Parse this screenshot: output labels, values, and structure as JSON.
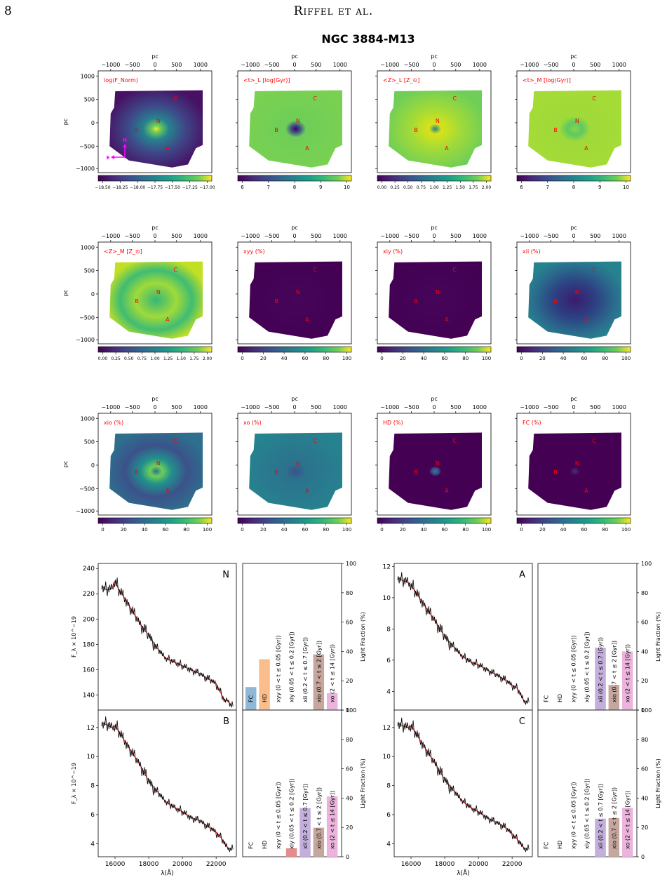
{
  "header": {
    "page_number": "8",
    "running_head": "Riffel et al."
  },
  "figure_title": "NGC 3884-M13",
  "map_axis": {
    "top_label": "pc",
    "left_label": "pc",
    "ticks": [
      "−1000",
      "−500",
      "0",
      "500",
      "1000"
    ]
  },
  "map_points": [
    "N",
    "A",
    "B",
    "C"
  ],
  "compass": {
    "north": "N",
    "east": "E"
  },
  "maps": [
    {
      "label": "log(F_Norm)",
      "cbar_ticks": [
        "−18.50",
        "−18.25",
        "−18.00",
        "−17.75",
        "−17.50",
        "−17.25",
        "−17.00"
      ]
    },
    {
      "label": "<t>_L [log(Gyr)]",
      "cbar_ticks": [
        "6",
        "7",
        "8",
        "9",
        "10"
      ]
    },
    {
      "label": "<Z>_L [Z_⊙]",
      "cbar_ticks": [
        "0.00",
        "0.25",
        "0.50",
        "0.75",
        "1.00",
        "1.25",
        "1.50",
        "1.75",
        "2.00"
      ]
    },
    {
      "label": "<t>_M [log(Gyr)]",
      "cbar_ticks": [
        "6",
        "7",
        "8",
        "9",
        "10"
      ]
    },
    {
      "label": "<Z>_M [Z_⊙]",
      "cbar_ticks": [
        "0.00",
        "0.25",
        "0.50",
        "0.75",
        "1.00",
        "1.25",
        "1.50",
        "1.75",
        "2.00"
      ]
    },
    {
      "label": "xyy (%)",
      "cbar_ticks": [
        "0",
        "20",
        "40",
        "60",
        "80",
        "100"
      ]
    },
    {
      "label": "xiy (%)",
      "cbar_ticks": [
        "0",
        "20",
        "40",
        "60",
        "80",
        "100"
      ]
    },
    {
      "label": "xii (%)",
      "cbar_ticks": [
        "0",
        "20",
        "40",
        "60",
        "80",
        "100"
      ]
    },
    {
      "label": "xio (%)",
      "cbar_ticks": [
        "0",
        "20",
        "40",
        "60",
        "80",
        "100"
      ]
    },
    {
      "label": "xo (%)",
      "cbar_ticks": [
        "0",
        "20",
        "40",
        "60",
        "80",
        "100"
      ]
    },
    {
      "label": "HD (%)",
      "cbar_ticks": [
        "0",
        "20",
        "40",
        "60",
        "80",
        "100"
      ]
    },
    {
      "label": "FC (%)",
      "cbar_ticks": [
        "0",
        "20",
        "40",
        "60",
        "80",
        "100"
      ]
    }
  ],
  "bar_categories": [
    "FC",
    "HD",
    "xyy (0 < t ≤ 0.05 [Gyr])",
    "xiy (0.05 < t ≤ 0.2 [Gyr])",
    "xii (0.2 < t ≤ 0.7 [Gyr])",
    "xio (0.7 < t ≤ 2 [Gyr])",
    "xo (2 < t ≤ 14 [Gyr])"
  ],
  "bar_colors": [
    "#8fb8d6",
    "#f9be8c",
    "#8fc98f",
    "#e48d8c",
    "#c3afdc",
    "#c6a79e",
    "#ecb4dc"
  ],
  "spectra_labels": {
    "ylabel": "F_λ × 10^−19",
    "xlabel": "λ(Å)",
    "right_ylabel": "Light Fraction (%)"
  },
  "colors": {
    "observed": "#000000",
    "model": "#e31a1c",
    "annot": "#ff0000",
    "compass": "#ff00ff"
  },
  "chart_data": [
    {
      "type": "line",
      "id": "spectrum-N",
      "label": "N",
      "x": [
        15200,
        15500,
        15800,
        16000,
        16200,
        16500,
        17000,
        17500,
        18000,
        18500,
        19000,
        19500,
        20000,
        20500,
        21000,
        21500,
        22000,
        22300,
        22500,
        22700,
        22900
      ],
      "y": [
        226,
        223,
        224,
        230,
        224,
        218,
        207,
        196,
        187,
        177,
        169,
        166,
        163,
        160,
        157,
        153,
        149,
        141,
        135,
        136,
        131
      ],
      "xlim": [
        15000,
        23200
      ],
      "ylim": [
        128,
        244
      ],
      "xticks": [
        16000,
        18000,
        20000,
        22000
      ],
      "yticks": [
        140,
        160,
        180,
        200,
        220,
        240
      ]
    },
    {
      "type": "bar",
      "id": "fractions-N",
      "categories": [
        "FC",
        "HD",
        "xyy",
        "xiy",
        "xii",
        "xio",
        "xo"
      ],
      "values": [
        15.7,
        34.7,
        0,
        0,
        0,
        38.0,
        11.5
      ],
      "ylim": [
        0,
        100
      ],
      "yticks": [
        0,
        20,
        40,
        60,
        80,
        100
      ]
    },
    {
      "type": "line",
      "id": "spectrum-A",
      "label": "A",
      "x": [
        15200,
        15500,
        15800,
        16000,
        16200,
        16500,
        17000,
        17500,
        18000,
        18500,
        19000,
        19500,
        20000,
        20500,
        21000,
        21500,
        22000,
        22300,
        22500,
        22700,
        22900
      ],
      "y": [
        11.3,
        11.1,
        11.0,
        10.8,
        10.5,
        10.0,
        9.2,
        8.4,
        7.5,
        6.9,
        6.3,
        5.9,
        5.7,
        5.4,
        5.1,
        4.8,
        4.4,
        4.2,
        3.8,
        3.4,
        3.3
      ],
      "xlim": [
        15000,
        23200
      ],
      "ylim": [
        2.8,
        12.2
      ],
      "xticks": [
        16000,
        18000,
        20000,
        22000
      ],
      "yticks": [
        4,
        6,
        8,
        10,
        12
      ]
    },
    {
      "type": "bar",
      "id": "fractions-A",
      "categories": [
        "FC",
        "HD",
        "xyy",
        "xiy",
        "xii",
        "xio",
        "xo"
      ],
      "values": [
        0,
        0,
        0,
        0,
        42.6,
        17.2,
        40.0
      ],
      "ylim": [
        0,
        100
      ],
      "yticks": [
        0,
        20,
        40,
        60,
        80,
        100
      ]
    },
    {
      "type": "line",
      "id": "spectrum-B",
      "label": "B",
      "x": [
        15200,
        15500,
        15800,
        16000,
        16200,
        16500,
        17000,
        17500,
        18000,
        18500,
        19000,
        19500,
        20000,
        20500,
        21000,
        21500,
        22000,
        22300,
        22500,
        22700,
        22900
      ],
      "y": [
        12.3,
        12.2,
        12.0,
        12.1,
        11.8,
        11.2,
        10.3,
        9.4,
        8.3,
        7.6,
        6.9,
        6.5,
        6.2,
        5.8,
        5.6,
        5.2,
        4.8,
        4.4,
        4.0,
        3.7,
        3.6
      ],
      "xlim": [
        15000,
        23200
      ],
      "ylim": [
        3.1,
        13.2
      ],
      "xticks": [
        16000,
        18000,
        20000,
        22000
      ],
      "yticks": [
        4,
        6,
        8,
        10,
        12
      ]
    },
    {
      "type": "bar",
      "id": "fractions-B",
      "categories": [
        "FC",
        "HD",
        "xyy",
        "xiy",
        "xii",
        "xio",
        "xo"
      ],
      "values": [
        0,
        0,
        0,
        5.8,
        33.2,
        19.8,
        41.2
      ],
      "ylim": [
        0,
        100
      ],
      "yticks": [
        0,
        20,
        40,
        60,
        80,
        100
      ]
    },
    {
      "type": "line",
      "id": "spectrum-C",
      "label": "C",
      "x": [
        15200,
        15500,
        15800,
        16000,
        16200,
        16500,
        17000,
        17500,
        18000,
        18500,
        19000,
        19500,
        20000,
        20500,
        21000,
        21500,
        22000,
        22300,
        22500,
        22700,
        22900
      ],
      "y": [
        12.3,
        12.1,
        12.0,
        12.1,
        11.8,
        11.2,
        10.3,
        9.4,
        8.4,
        7.7,
        7.0,
        6.5,
        6.2,
        5.8,
        5.5,
        5.2,
        4.7,
        4.3,
        4.0,
        3.7,
        3.6
      ],
      "xlim": [
        15000,
        23200
      ],
      "ylim": [
        3.1,
        13.2
      ],
      "xticks": [
        16000,
        18000,
        20000,
        22000
      ],
      "yticks": [
        4,
        6,
        8,
        10,
        12
      ]
    },
    {
      "type": "bar",
      "id": "fractions-C",
      "categories": [
        "FC",
        "HD",
        "xyy",
        "xiy",
        "xii",
        "xio",
        "xo"
      ],
      "values": [
        0,
        0,
        0,
        0,
        26.0,
        26.3,
        33.5
      ],
      "ylim": [
        0,
        100
      ],
      "yticks": [
        0,
        20,
        40,
        60,
        80,
        100
      ]
    }
  ]
}
